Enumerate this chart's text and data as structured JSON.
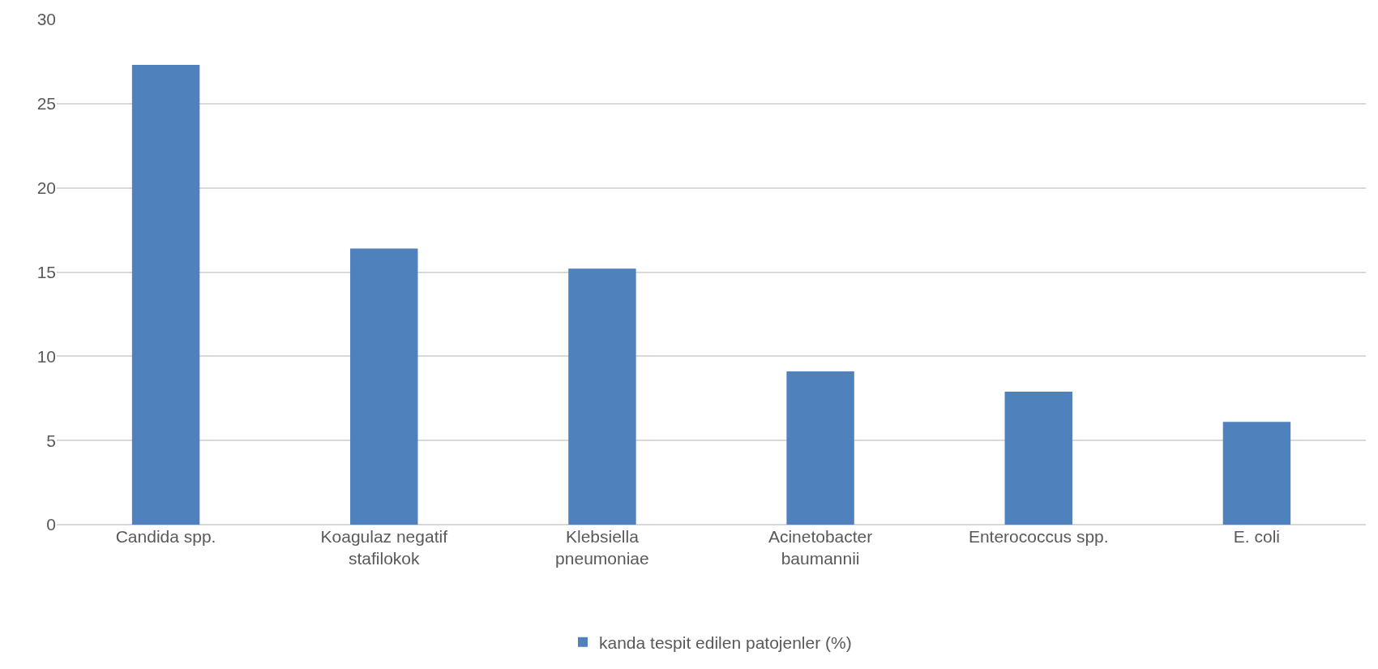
{
  "chart_data": {
    "type": "bar",
    "categories": [
      "Candida spp.",
      "Koagulaz negatif stafilokok",
      "Klebsiella pneumoniae",
      "Acinetobacter baumannii",
      "Enterococcus spp.",
      "E. coli"
    ],
    "series": [
      {
        "name": "kanda tespit edilen patojenler (%)",
        "color": "#4f81bd",
        "values": [
          27.3,
          16.4,
          15.2,
          9.1,
          7.9,
          6.1
        ]
      }
    ],
    "ylim": [
      0,
      30
    ],
    "yticks": [
      0,
      5,
      10,
      15,
      20,
      25,
      30
    ],
    "grid": "y",
    "legend": "bottom"
  }
}
